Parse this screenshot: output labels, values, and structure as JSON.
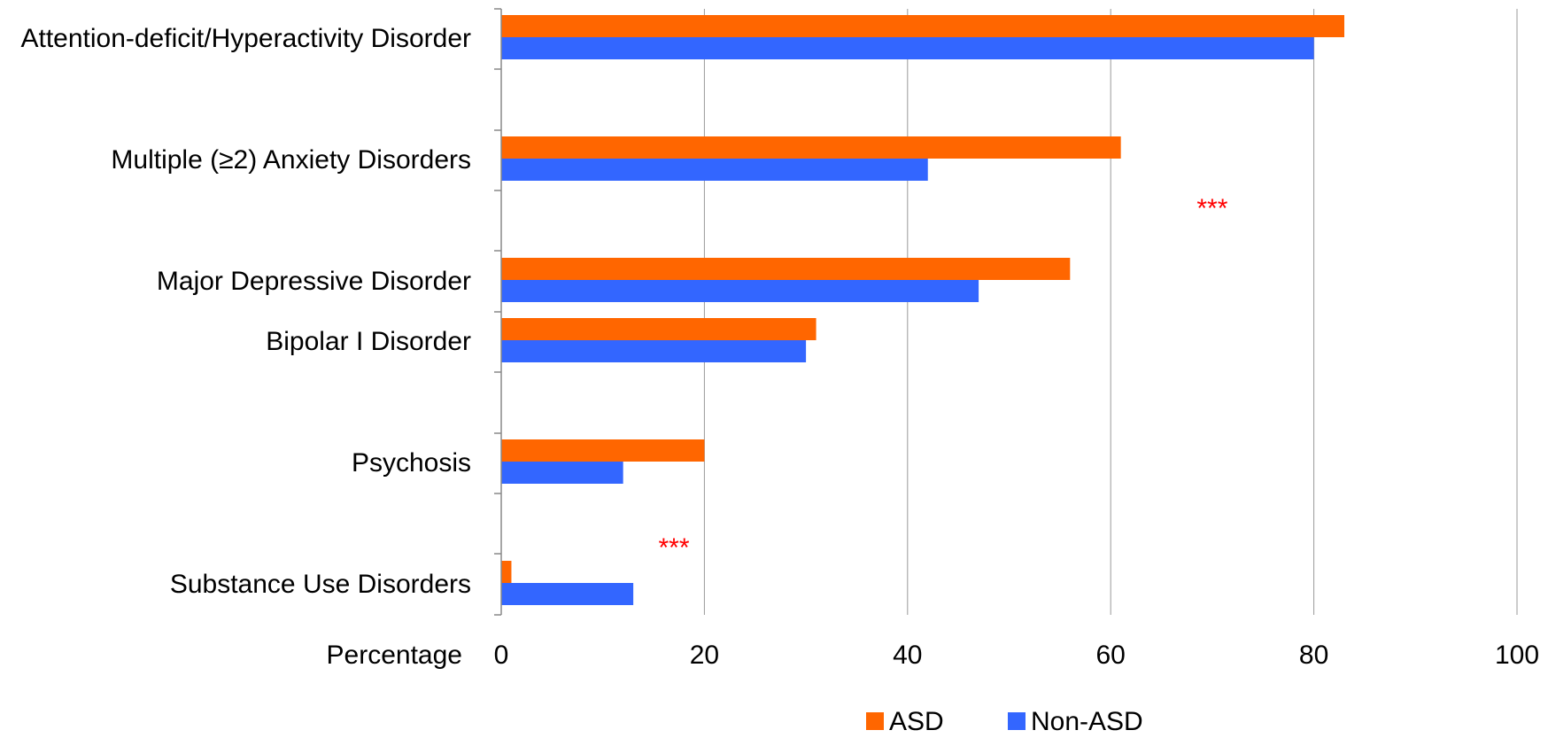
{
  "chart_data": {
    "type": "bar",
    "orientation": "horizontal",
    "categories": [
      "Attention-deficit/Hyperactivity Disorder",
      "Multiple (≥2) Anxiety Disorders",
      "Major Depressive Disorder",
      "Bipolar I Disorder",
      "Psychosis",
      "Substance Use Disorders"
    ],
    "series": [
      {
        "name": "ASD",
        "color": "#ff6600",
        "values": [
          83,
          61,
          56,
          31,
          20,
          1
        ]
      },
      {
        "name": "Non-ASD",
        "color": "#3366ff",
        "values": [
          80,
          42,
          47,
          30,
          12,
          13
        ]
      }
    ],
    "xlabel": "Percentage",
    "xlim": [
      0,
      100
    ],
    "xticks": [
      0,
      20,
      40,
      60,
      80,
      100
    ],
    "grid": true,
    "legend": "bottom-center",
    "annotations": [
      {
        "text": "***",
        "x": 70,
        "near_category": "Multiple (≥2) Anxiety Disorders"
      },
      {
        "text": "***",
        "x": 17,
        "near_category": "Substance Use Disorders"
      }
    ]
  }
}
